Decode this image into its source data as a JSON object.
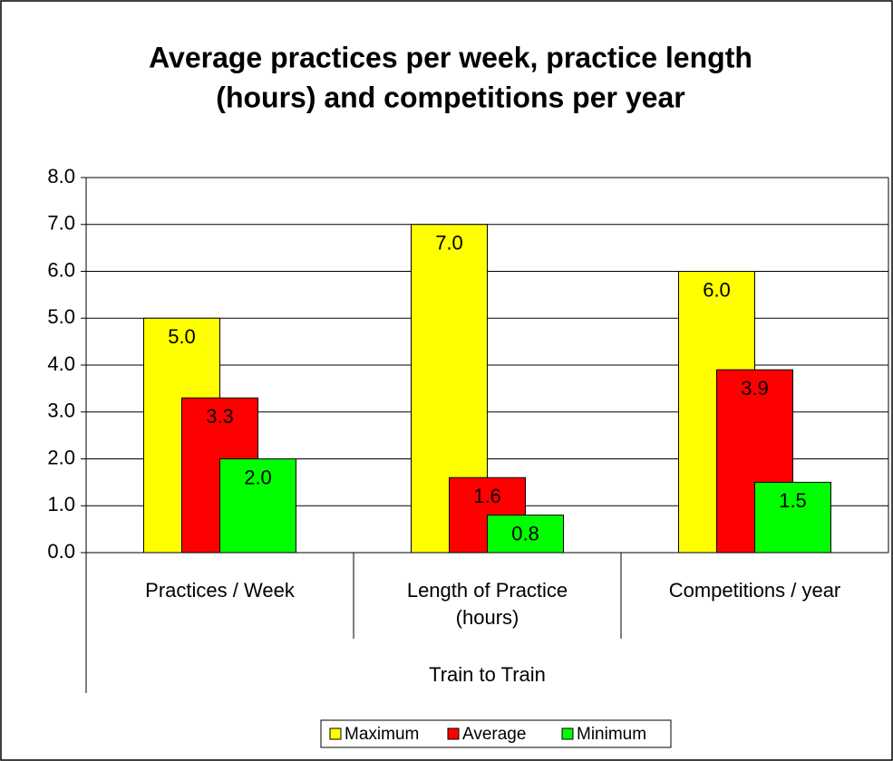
{
  "chart_data": {
    "type": "bar",
    "title": [
      "Average practices per week, practice length",
      "(hours) and competitions per year"
    ],
    "categories": [
      "Practices / Week",
      "Length of Practice (hours)",
      "Competitions / year"
    ],
    "category_group": "Train to Train",
    "series": [
      {
        "name": "Maximum",
        "color": "#ffff00",
        "values": [
          5,
          7,
          6
        ],
        "value_labels": [
          "5.0",
          "7.0",
          "6.0"
        ]
      },
      {
        "name": "Average",
        "color": "#ff0000",
        "values": [
          3.3,
          1.6,
          3.9
        ],
        "value_labels": [
          "3.3",
          "1.6",
          "3.9"
        ]
      },
      {
        "name": "Minimum",
        "color": "#00ff00",
        "values": [
          2,
          0.8,
          1.5
        ],
        "value_labels": [
          "2.0",
          "0.8",
          "1.5"
        ]
      }
    ],
    "ylim": [
      0,
      8
    ],
    "yticks": [
      {
        "value": 0,
        "label": "0.0"
      },
      {
        "value": 1,
        "label": "1.0"
      },
      {
        "value": 2,
        "label": "2.0"
      },
      {
        "value": 3,
        "label": "3.0"
      },
      {
        "value": 4,
        "label": "4.0"
      },
      {
        "value": 5,
        "label": "5.0"
      },
      {
        "value": 6,
        "label": "6.0"
      },
      {
        "value": 7,
        "label": "7.0"
      },
      {
        "value": 8,
        "label": "8.0"
      }
    ],
    "grid": true,
    "legend": "bottom"
  }
}
